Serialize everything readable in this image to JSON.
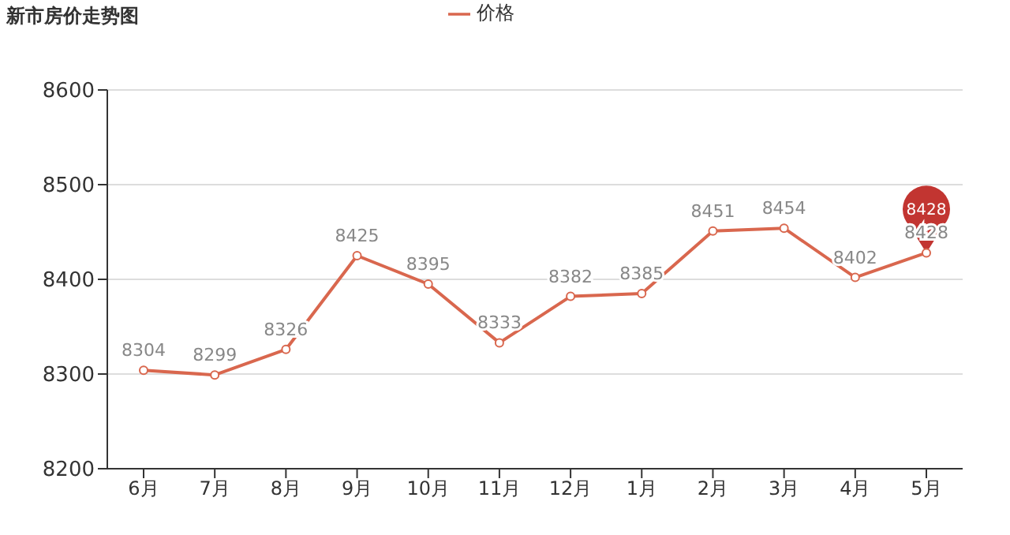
{
  "chart_data": {
    "type": "line",
    "title": "新市房价走势图",
    "categories": [
      "6月",
      "7月",
      "8月",
      "9月",
      "10月",
      "11月",
      "12月",
      "1月",
      "2月",
      "3月",
      "4月",
      "5月"
    ],
    "series": [
      {
        "name": "价格",
        "color": "#d9674e",
        "values": [
          8304,
          8299,
          8326,
          8425,
          8395,
          8333,
          8382,
          8385,
          8451,
          8454,
          8402,
          8428
        ]
      }
    ],
    "ylim": [
      8200,
      8600
    ],
    "yticks": [
      8200,
      8300,
      8400,
      8500,
      8600
    ],
    "grid": "y",
    "legend": "top",
    "marker": "circle",
    "line_style": "solid",
    "data_labels": true,
    "annotations": [
      {
        "text": "8428",
        "x": "5月",
        "y": 8428
      }
    ]
  }
}
